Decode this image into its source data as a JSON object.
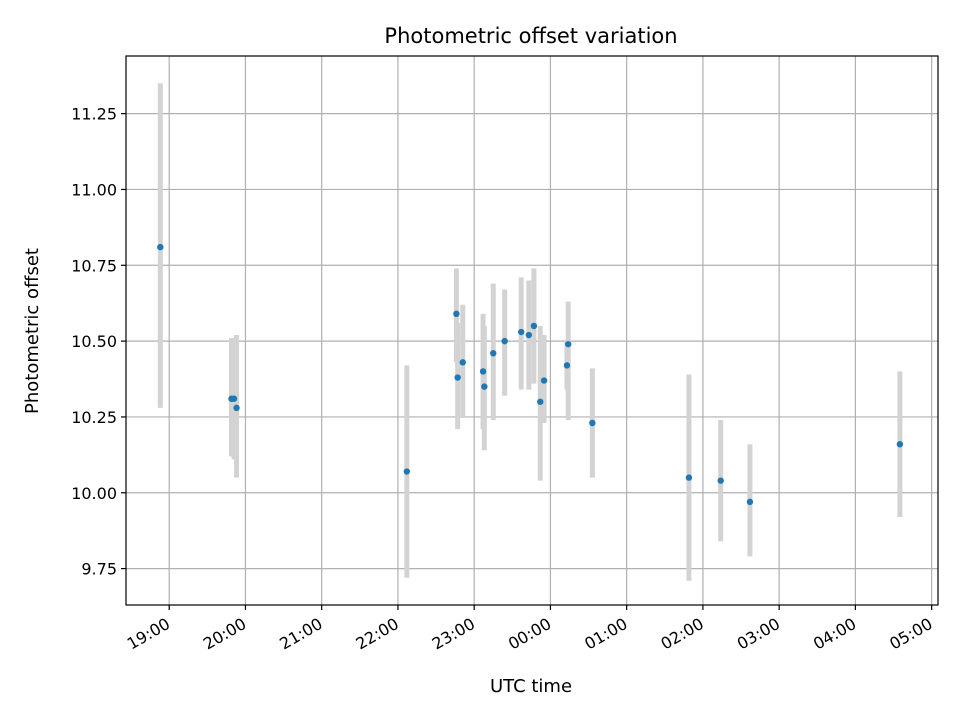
{
  "chart_data": {
    "type": "scatter",
    "title": "Photometric offset variation",
    "xlabel": "UTC time",
    "ylabel": "Photometric offset",
    "grid": true,
    "x_format": "HH:MM",
    "xlim": [
      "18:26",
      "05:05"
    ],
    "ylim": [
      9.63,
      11.44
    ],
    "x_ticks": [
      {
        "t": "19:00",
        "label": "19:00"
      },
      {
        "t": "20:00",
        "label": "20:00"
      },
      {
        "t": "21:00",
        "label": "21:00"
      },
      {
        "t": "22:00",
        "label": "22:00"
      },
      {
        "t": "23:00",
        "label": "23:00"
      },
      {
        "t": "00:00",
        "label": "00:00"
      },
      {
        "t": "01:00",
        "label": "01:00"
      },
      {
        "t": "02:00",
        "label": "02:00"
      },
      {
        "t": "03:00",
        "label": "03:00"
      },
      {
        "t": "04:00",
        "label": "04:00"
      },
      {
        "t": "05:00",
        "label": "05:00"
      }
    ],
    "y_ticks": [
      {
        "v": 9.75,
        "label": "9.75"
      },
      {
        "v": 10.0,
        "label": "10.00"
      },
      {
        "v": 10.25,
        "label": "10.25"
      },
      {
        "v": 10.5,
        "label": "10.50"
      },
      {
        "v": 10.75,
        "label": "10.75"
      },
      {
        "v": 11.0,
        "label": "11.00"
      },
      {
        "v": 11.25,
        "label": "11.25"
      }
    ],
    "marker_color": "#1f77b4",
    "errorbar_color": "#d3d3d3",
    "series": [
      {
        "points": [
          {
            "t": "18:53",
            "y": 10.81,
            "lo": 10.28,
            "hi": 11.35
          },
          {
            "t": "19:49",
            "y": 10.31,
            "lo": 10.12,
            "hi": 10.51
          },
          {
            "t": "19:51",
            "y": 10.31,
            "lo": 10.11,
            "hi": 10.51
          },
          {
            "t": "19:53",
            "y": 10.28,
            "lo": 10.05,
            "hi": 10.52
          },
          {
            "t": "22:07",
            "y": 10.07,
            "lo": 9.72,
            "hi": 10.42
          },
          {
            "t": "22:46",
            "y": 10.59,
            "lo": 10.43,
            "hi": 10.74
          },
          {
            "t": "22:47",
            "y": 10.38,
            "lo": 10.21,
            "hi": 10.56
          },
          {
            "t": "22:51",
            "y": 10.43,
            "lo": 10.25,
            "hi": 10.62
          },
          {
            "t": "23:07",
            "y": 10.4,
            "lo": 10.21,
            "hi": 10.59
          },
          {
            "t": "23:08",
            "y": 10.35,
            "lo": 10.14,
            "hi": 10.55
          },
          {
            "t": "23:15",
            "y": 10.46,
            "lo": 10.24,
            "hi": 10.69
          },
          {
            "t": "23:24",
            "y": 10.5,
            "lo": 10.32,
            "hi": 10.67
          },
          {
            "t": "23:37",
            "y": 10.53,
            "lo": 10.34,
            "hi": 10.71
          },
          {
            "t": "23:43",
            "y": 10.52,
            "lo": 10.34,
            "hi": 10.7
          },
          {
            "t": "23:47",
            "y": 10.55,
            "lo": 10.36,
            "hi": 10.74
          },
          {
            "t": "23:52",
            "y": 10.3,
            "lo": 10.04,
            "hi": 10.55
          },
          {
            "t": "23:55",
            "y": 10.37,
            "lo": 10.23,
            "hi": 10.52
          },
          {
            "t": "00:13",
            "y": 10.42,
            "lo": 10.34,
            "hi": 10.5
          },
          {
            "t": "00:14",
            "y": 10.49,
            "lo": 10.24,
            "hi": 10.63
          },
          {
            "t": "00:33",
            "y": 10.23,
            "lo": 10.05,
            "hi": 10.41
          },
          {
            "t": "01:49",
            "y": 10.05,
            "lo": 9.71,
            "hi": 10.39
          },
          {
            "t": "02:14",
            "y": 10.04,
            "lo": 9.84,
            "hi": 10.24
          },
          {
            "t": "02:37",
            "y": 9.97,
            "lo": 9.79,
            "hi": 10.16
          },
          {
            "t": "04:35",
            "y": 10.16,
            "lo": 9.92,
            "hi": 10.4
          }
        ]
      }
    ]
  }
}
